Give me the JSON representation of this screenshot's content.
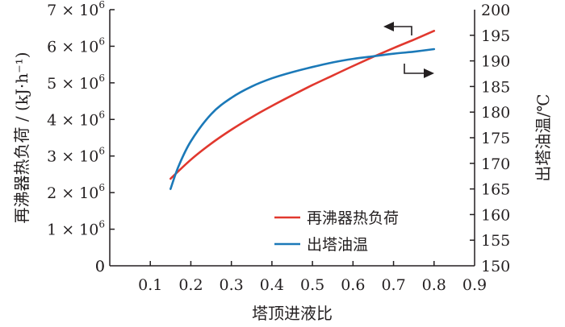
{
  "chart_data": {
    "type": "line",
    "xlabel": "塔顶进液比",
    "x_ticks": [
      "0",
      "0.1",
      "0.2",
      "0.3",
      "0.4",
      "0.5",
      "0.6",
      "0.7",
      "0.8",
      "0.9"
    ],
    "xlim": [
      0,
      0.9
    ],
    "y_left": {
      "label": "再沸器热负荷 / (kJ·h⁻¹)",
      "lim": [
        0,
        7000000
      ],
      "ticks": [
        {
          "value": 0,
          "mant": "0",
          "exp": ""
        },
        {
          "value": 1000000,
          "mant": "1 × 10",
          "exp": "6"
        },
        {
          "value": 2000000,
          "mant": "2 × 10",
          "exp": "6"
        },
        {
          "value": 3000000,
          "mant": "3 × 10",
          "exp": "6"
        },
        {
          "value": 4000000,
          "mant": "4 × 10",
          "exp": "6"
        },
        {
          "value": 5000000,
          "mant": "5 × 10",
          "exp": "6"
        },
        {
          "value": 6000000,
          "mant": "6 × 10",
          "exp": "6"
        },
        {
          "value": 7000000,
          "mant": "7 × 10",
          "exp": "6"
        }
      ]
    },
    "y_right": {
      "label": "出塔油温/℃",
      "lim": [
        150,
        200
      ],
      "ticks": [
        "150",
        "155",
        "160",
        "165",
        "170",
        "175",
        "180",
        "185",
        "190",
        "195",
        "200"
      ]
    },
    "series": [
      {
        "name": "再沸器热负荷",
        "axis": "left",
        "color": "#e1382e",
        "x": [
          0.15,
          0.2,
          0.25,
          0.3,
          0.35,
          0.4,
          0.45,
          0.5,
          0.55,
          0.6,
          0.65,
          0.7,
          0.75,
          0.8
        ],
        "y": [
          2380000,
          2900000,
          3340000,
          3720000,
          4060000,
          4370000,
          4660000,
          4940000,
          5200000,
          5460000,
          5710000,
          5950000,
          6180000,
          6420000
        ]
      },
      {
        "name": "出塔油温",
        "axis": "right",
        "color": "#1b79b8",
        "x": [
          0.15,
          0.17,
          0.2,
          0.25,
          0.3,
          0.35,
          0.4,
          0.45,
          0.5,
          0.55,
          0.6,
          0.65,
          0.7,
          0.75,
          0.8
        ],
        "y": [
          165.0,
          169.5,
          174.3,
          179.6,
          182.8,
          185.0,
          186.6,
          187.8,
          188.8,
          189.7,
          190.4,
          190.9,
          191.4,
          191.8,
          192.3
        ]
      }
    ],
    "annotations": [
      "left-arrow → left axis (再沸器热负荷)",
      "right-arrow → right axis (出塔油温)"
    ],
    "legend_position": "bottom-right",
    "grid": false
  }
}
